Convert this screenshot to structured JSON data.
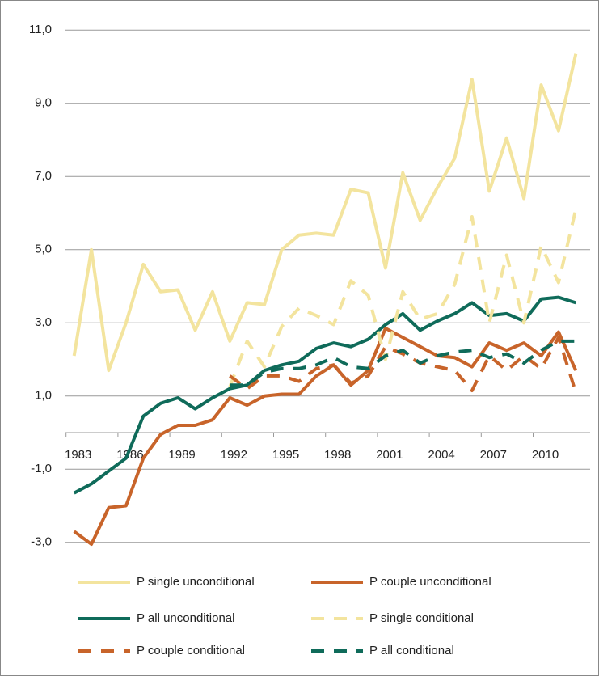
{
  "chart_data": {
    "type": "line",
    "x": [
      1983,
      1984,
      1985,
      1986,
      1987,
      1988,
      1989,
      1990,
      1991,
      1992,
      1993,
      1994,
      1995,
      1996,
      1997,
      1998,
      1999,
      2000,
      2001,
      2002,
      2003,
      2004,
      2005,
      2006,
      2007,
      2008,
      2009,
      2010,
      2011,
      2012
    ],
    "xlim": [
      1982.5,
      2012.5
    ],
    "xticks": [
      1983,
      1986,
      1989,
      1992,
      1995,
      1998,
      2001,
      2004,
      2007,
      2010
    ],
    "ylim": [
      -3,
      11
    ],
    "yticks": [
      {
        "value": -3,
        "label": "-3,0"
      },
      {
        "value": -1,
        "label": "-1,0"
      },
      {
        "value": 1,
        "label": "1,0"
      },
      {
        "value": 3,
        "label": "3,0"
      },
      {
        "value": 5,
        "label": "5,0"
      },
      {
        "value": 7,
        "label": "7,0"
      },
      {
        "value": 9,
        "label": "9,0"
      },
      {
        "value": 11,
        "label": "11,0"
      }
    ],
    "grid": true,
    "legend": "bottom",
    "series": [
      {
        "name": "P single unconditional",
        "color": "#f3e49e",
        "dashed": false,
        "values": [
          2.1,
          5.0,
          1.7,
          3.0,
          4.6,
          3.85,
          3.9,
          2.8,
          3.85,
          2.5,
          3.55,
          3.5,
          5.0,
          5.4,
          5.45,
          5.4,
          6.65,
          6.55,
          4.5,
          7.1,
          5.8,
          6.7,
          7.5,
          9.65,
          6.6,
          8.05,
          6.4,
          9.5,
          8.25,
          10.35
        ]
      },
      {
        "name": "P couple unconditional",
        "color": "#c8642a",
        "dashed": false,
        "values": [
          -2.7,
          -3.05,
          -2.05,
          -2.0,
          -0.7,
          -0.05,
          0.2,
          0.2,
          0.35,
          0.95,
          0.75,
          1.0,
          1.05,
          1.05,
          1.55,
          1.85,
          1.3,
          1.7,
          2.85,
          2.6,
          2.35,
          2.1,
          2.05,
          1.8,
          2.45,
          2.25,
          2.45,
          2.1,
          2.75,
          1.7
        ]
      },
      {
        "name": "P all unconditional",
        "color": "#0f6b5a",
        "dashed": false,
        "values": [
          -1.65,
          -1.4,
          -1.05,
          -0.7,
          0.45,
          0.8,
          0.95,
          0.65,
          0.95,
          1.2,
          1.3,
          1.7,
          1.85,
          1.95,
          2.3,
          2.45,
          2.35,
          2.55,
          2.95,
          3.25,
          2.8,
          3.05,
          3.25,
          3.55,
          3.2,
          3.25,
          3.05,
          3.65,
          3.7,
          3.55
        ]
      },
      {
        "name": "P single conditional",
        "color": "#f3e49e",
        "dashed": true,
        "values": [
          null,
          null,
          null,
          null,
          null,
          null,
          null,
          null,
          null,
          1.25,
          2.5,
          1.8,
          2.9,
          3.4,
          3.2,
          2.95,
          4.15,
          3.75,
          2.0,
          3.85,
          3.1,
          3.25,
          4.05,
          5.9,
          3.0,
          4.85,
          3.0,
          5.1,
          4.1,
          6.1
        ]
      },
      {
        "name": "P couple conditional",
        "color": "#c8642a",
        "dashed": true,
        "values": [
          null,
          null,
          null,
          null,
          null,
          null,
          null,
          null,
          null,
          1.55,
          1.2,
          1.55,
          1.55,
          1.4,
          1.75,
          1.85,
          1.35,
          1.55,
          2.35,
          2.15,
          1.9,
          1.8,
          1.7,
          1.15,
          2.1,
          1.7,
          2.1,
          1.75,
          2.6,
          1.1
        ]
      },
      {
        "name": "P all conditional",
        "color": "#0f6b5a",
        "dashed": true,
        "values": [
          null,
          null,
          null,
          null,
          null,
          null,
          null,
          null,
          null,
          1.3,
          1.3,
          1.65,
          1.75,
          1.75,
          1.85,
          2.05,
          1.8,
          1.75,
          2.1,
          2.25,
          1.9,
          2.1,
          2.2,
          2.25,
          2.05,
          2.15,
          1.9,
          2.25,
          2.5,
          2.5
        ]
      }
    ]
  }
}
